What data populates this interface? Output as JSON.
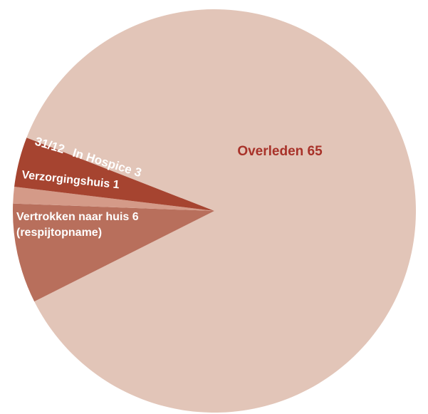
{
  "chart_data": {
    "type": "pie",
    "title": "",
    "slices": [
      {
        "label": "Overleden",
        "value": 65,
        "color": "#e2c5b8",
        "text_color": "#a83229"
      },
      {
        "label": "Vertrokken naar huis (respijtopname)",
        "value": 6,
        "color": "#b86f5c",
        "text_color": "#ffffff"
      },
      {
        "label": "Verzorgingshuis",
        "value": 1,
        "color": "#d49a88",
        "text_color": "#ffffff"
      },
      {
        "label": "In Hospice 31/12",
        "value": 3,
        "color": "#a64430",
        "text_color": "#ffffff"
      }
    ],
    "labels": {
      "overleden": {
        "name": "Overleden",
        "value": "65"
      },
      "vertrokken": {
        "line1_name": "Vertrokken naar huis",
        "value": "6",
        "line2": "(respijtopname)"
      },
      "verzorgingshuis": {
        "name": "Verzorgingshuis",
        "value": "1"
      },
      "hospice": {
        "prefix": "31/12",
        "name": "In Hospice",
        "value": "3"
      }
    },
    "legend": "none"
  }
}
